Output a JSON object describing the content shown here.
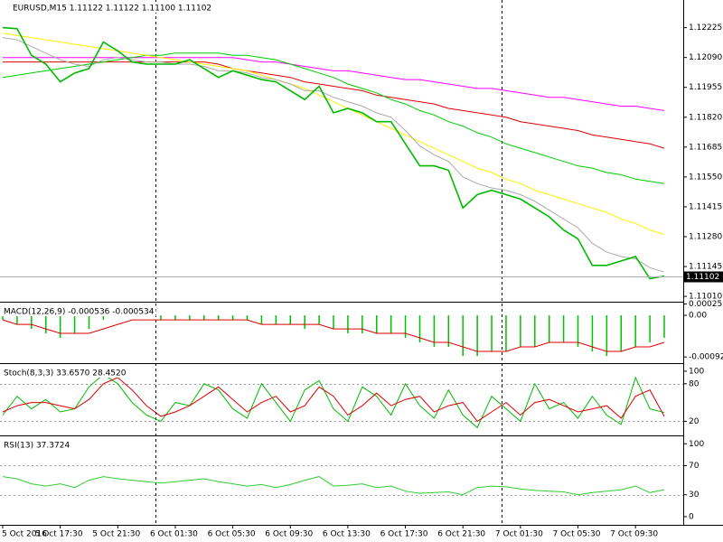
{
  "chart_data": [
    {
      "type": "line",
      "title": "EURUSD,M15  1.11122 1.11122 1.11100 1.11102",
      "categories": [
        "5 Oct 2016",
        null,
        null,
        null,
        "5 Oct 17:30",
        null,
        null,
        null,
        "5 Oct 21:30",
        null,
        null,
        null,
        "6 Oct 01:30",
        null,
        null,
        null,
        "6 Oct 05:30",
        null,
        null,
        null,
        "6 Oct 09:30",
        null,
        null,
        null,
        "6 Oct 13:30",
        null,
        null,
        null,
        "6 Oct 17:30",
        null,
        null,
        null,
        "6 Oct 21:30",
        null,
        null,
        null,
        "7 Oct 01:30",
        null,
        null,
        null,
        "7 Oct 05:30",
        null,
        null,
        null,
        "7 Oct 09:30",
        null,
        null
      ],
      "series": [
        {
          "color": "#ff00ff",
          "values": [
            1.1209,
            1.1209,
            1.1209,
            1.1209,
            1.1209,
            1.1209,
            1.1209,
            1.1209,
            1.1209,
            1.1209,
            1.1209,
            1.1209,
            1.1209,
            1.1209,
            1.1209,
            1.1209,
            1.1209,
            1.1208,
            1.1207,
            1.1207,
            1.1206,
            1.1205,
            1.1204,
            1.1203,
            1.1203,
            1.1202,
            1.1201,
            1.12,
            1.1199,
            1.1199,
            1.1198,
            1.1197,
            1.1196,
            1.1195,
            1.1195,
            1.1194,
            1.1193,
            1.1192,
            1.1191,
            1.1191,
            1.119,
            1.1189,
            1.1188,
            1.1187,
            1.1187,
            1.1186,
            1.1185
          ]
        },
        {
          "color": "#dd0000",
          "values": [
            1.1207,
            1.1207,
            1.1207,
            1.1207,
            1.1207,
            1.1207,
            1.1207,
            1.1207,
            1.1207,
            1.1207,
            1.1207,
            1.1207,
            1.1207,
            1.1207,
            1.1207,
            1.1206,
            1.1204,
            1.1203,
            1.1202,
            1.1201,
            1.12,
            1.1198,
            1.1197,
            1.1196,
            1.1195,
            1.1194,
            1.1192,
            1.1191,
            1.119,
            1.1189,
            1.1188,
            1.1186,
            1.1185,
            1.1184,
            1.1183,
            1.1182,
            1.118,
            1.1179,
            1.1178,
            1.1177,
            1.1176,
            1.1174,
            1.1173,
            1.1172,
            1.1171,
            1.117,
            1.1168
          ]
        },
        {
          "color": "#00cc00",
          "values": [
            1.12,
            1.1201,
            1.1202,
            1.1203,
            1.1204,
            1.1205,
            1.1206,
            1.1207,
            1.1208,
            1.1209,
            1.121,
            1.121,
            1.1211,
            1.1211,
            1.1211,
            1.1211,
            1.121,
            1.121,
            1.1209,
            1.1208,
            1.1206,
            1.1204,
            1.1202,
            1.12,
            1.1197,
            1.1195,
            1.1193,
            1.119,
            1.1188,
            1.1185,
            1.1183,
            1.118,
            1.1178,
            1.1175,
            1.1173,
            1.117,
            1.1168,
            1.1166,
            1.1164,
            1.1162,
            1.116,
            1.1159,
            1.1157,
            1.1156,
            1.1154,
            1.1153,
            1.1152
          ]
        },
        {
          "color": "#ffee00",
          "values": [
            1.122,
            1.1219,
            1.1218,
            1.1217,
            1.1216,
            1.1215,
            1.1214,
            1.1213,
            1.1212,
            1.1211,
            1.121,
            1.1209,
            1.1208,
            1.1207,
            1.1206,
            1.1205,
            1.1204,
            1.1203,
            1.1201,
            1.1199,
            1.1197,
            1.1195,
            1.1192,
            1.1189,
            1.1186,
            1.1183,
            1.118,
            1.1177,
            1.1174,
            1.1171,
            1.1168,
            1.1165,
            1.1162,
            1.1159,
            1.1157,
            1.1154,
            1.1152,
            1.1149,
            1.1147,
            1.1145,
            1.1143,
            1.1141,
            1.1139,
            1.1136,
            1.1134,
            1.1131,
            1.1129
          ]
        },
        {
          "color": "#aaaaaa",
          "values": [
            1.1218,
            1.1217,
            1.1214,
            1.1211,
            1.1208,
            1.1206,
            1.1205,
            1.1208,
            1.1209,
            1.1208,
            1.1207,
            1.1207,
            1.1206,
            1.1206,
            1.1205,
            1.1203,
            1.1203,
            1.1202,
            1.12,
            1.1199,
            1.1197,
            1.1194,
            1.1194,
            1.1191,
            1.1189,
            1.1187,
            1.1184,
            1.1182,
            1.1176,
            1.1169,
            1.1165,
            1.1162,
            1.1155,
            1.1152,
            1.115,
            1.1149,
            1.1147,
            1.1144,
            1.114,
            1.1136,
            1.1132,
            1.1125,
            1.1121,
            1.1119,
            1.1118,
            1.1114,
            1.1112
          ]
        },
        {
          "color": "#00bb00",
          "values": [
            1.12225,
            1.1222,
            1.121,
            1.1206,
            1.1198,
            1.1202,
            1.1204,
            1.1216,
            1.1212,
            1.1207,
            1.1206,
            1.1206,
            1.1206,
            1.1208,
            1.1204,
            1.12,
            1.1203,
            1.1201,
            1.1199,
            1.1198,
            1.1194,
            1.119,
            1.1196,
            1.1184,
            1.1186,
            1.1184,
            1.118,
            1.118,
            1.117,
            1.116,
            1.116,
            1.1158,
            1.1141,
            1.1147,
            1.1149,
            1.1147,
            1.1145,
            1.1141,
            1.1137,
            1.1131,
            1.1127,
            1.1115,
            1.1115,
            1.1117,
            1.1119,
            1.1109,
            1.11102
          ]
        }
      ],
      "ylim": [
        1.1099,
        1.1235
      ],
      "yticks": [
        1.12225,
        {
          "value": 1.1209,
          "label": "1.12090"
        },
        1.11955,
        {
          "value": 1.1182,
          "label": "1.11820"
        },
        1.11685,
        {
          "value": 1.1155,
          "label": "1.11550"
        },
        1.11415,
        {
          "value": 1.1128,
          "label": "1.11280"
        },
        1.11145,
        {
          "value": 1.1101,
          "label": "1.11010"
        }
      ],
      "last_price": 1.11102
    },
    {
      "type": "bar",
      "title": "MACD(12,26,9) -0.000536 -0.000534",
      "series": [
        {
          "type": "bar",
          "color": "#00c000",
          "values": [
            -0.0001,
            -0.0002,
            -0.0003,
            -0.0004,
            -0.0005,
            -0.0004,
            -0.0003,
            -0.0001,
            0,
            0,
            0,
            -0.0001,
            -0.0001,
            -0.0001,
            -0.0001,
            -0.0001,
            -0.0001,
            -0.0001,
            -0.0002,
            -0.0002,
            -0.0002,
            -0.0003,
            -0.0002,
            -0.0003,
            -0.0004,
            -0.0004,
            -0.0004,
            -0.0004,
            -0.0005,
            -0.0006,
            -0.0007,
            -0.0007,
            -0.0009,
            -0.0009,
            -0.0008,
            -0.0008,
            -0.0007,
            -0.0007,
            -0.0006,
            -0.0006,
            -0.0007,
            -0.0008,
            -0.0009,
            -0.0008,
            -0.0007,
            -0.0006,
            -0.0005
          ]
        },
        {
          "type": "line",
          "color": "#dd0000",
          "values": [
            -0.0001,
            -0.0002,
            -0.0002,
            -0.0003,
            -0.0004,
            -0.0004,
            -0.0004,
            -0.0003,
            -0.0002,
            -0.0001,
            -0.0001,
            -0.0001,
            -0.0001,
            -0.0001,
            -0.0001,
            -0.0001,
            -0.0001,
            -0.0001,
            -0.0002,
            -0.0002,
            -0.0002,
            -0.0002,
            -0.0002,
            -0.0003,
            -0.0003,
            -0.0003,
            -0.0004,
            -0.0004,
            -0.0004,
            -0.0005,
            -0.0006,
            -0.0006,
            -0.0007,
            -0.0008,
            -0.0008,
            -0.0008,
            -0.0007,
            -0.0007,
            -0.0006,
            -0.0006,
            -0.0006,
            -0.0007,
            -0.0008,
            -0.0008,
            -0.0007,
            -0.0007,
            -0.0006
          ]
        }
      ],
      "ylim": [
        -0.00104,
        0.000262
      ],
      "yticks": [
        0.000253,
        {
          "value": 0,
          "label": "0.00"
        },
        -0.000923
      ]
    },
    {
      "type": "line",
      "title": "Stoch(8,3,3) 33.6570 28.4520",
      "series": [
        {
          "color": "#00bb00",
          "values": [
            30,
            60,
            40,
            55,
            35,
            40,
            75,
            95,
            80,
            50,
            30,
            20,
            50,
            45,
            80,
            70,
            40,
            25,
            80,
            50,
            20,
            70,
            85,
            40,
            20,
            75,
            60,
            30,
            80,
            45,
            25,
            70,
            30,
            10,
            60,
            40,
            20,
            80,
            40,
            50,
            25,
            60,
            30,
            15,
            90,
            40,
            34
          ]
        },
        {
          "color": "#dd0000",
          "values": [
            35,
            45,
            50,
            50,
            45,
            40,
            55,
            80,
            90,
            70,
            45,
            28,
            35,
            45,
            60,
            75,
            55,
            35,
            50,
            60,
            35,
            45,
            75,
            60,
            30,
            45,
            65,
            45,
            55,
            60,
            35,
            45,
            50,
            20,
            35,
            50,
            30,
            50,
            55,
            45,
            35,
            40,
            45,
            25,
            60,
            70,
            28
          ]
        }
      ],
      "ylim": [
        -1,
        110
      ],
      "yticks": [
        100,
        80,
        20
      ],
      "levels": [
        80,
        20
      ]
    },
    {
      "type": "line",
      "title": "RSI(13) 37.3724",
      "series": [
        {
          "color": "#32cd32",
          "values": [
            55,
            52,
            45,
            42,
            45,
            40,
            50,
            55,
            52,
            50,
            48,
            46,
            48,
            50,
            52,
            48,
            45,
            42,
            44,
            40,
            44,
            50,
            55,
            42,
            43,
            45,
            40,
            42,
            35,
            32,
            33,
            34,
            30,
            40,
            42,
            41,
            38,
            36,
            35,
            34,
            30,
            33,
            35,
            37,
            42,
            33,
            37
          ]
        }
      ],
      "ylim": [
        -10,
        109
      ],
      "yticks": [
        100,
        70,
        30,
        0
      ],
      "levels": [
        70,
        30
      ]
    }
  ]
}
